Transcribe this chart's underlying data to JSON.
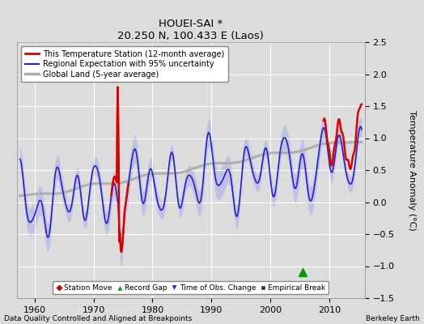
{
  "title": "HOUEI-SAI *",
  "subtitle": "20.250 N, 100.433 E (Laos)",
  "ylabel": "Temperature Anomaly (°C)",
  "xlabel_bottom": "Data Quality Controlled and Aligned at Breakpoints",
  "xlabel_right": "Berkeley Earth",
  "ylim": [
    -1.5,
    2.5
  ],
  "xlim": [
    1957,
    2016
  ],
  "yticks": [
    -1.5,
    -1.0,
    -0.5,
    0.0,
    0.5,
    1.0,
    1.5,
    2.0,
    2.5
  ],
  "xticks": [
    1960,
    1970,
    1980,
    1990,
    2000,
    2010
  ],
  "bg_color": "#dcdcdc",
  "grid_color": "#ffffff",
  "red_line_color": "#dd0000",
  "blue_line_color": "#2222cc",
  "blue_fill_color": "#aaaaee",
  "gray_line_color": "#aaaaaa",
  "record_gap_x": 2005.5,
  "record_gap_y": -1.1
}
